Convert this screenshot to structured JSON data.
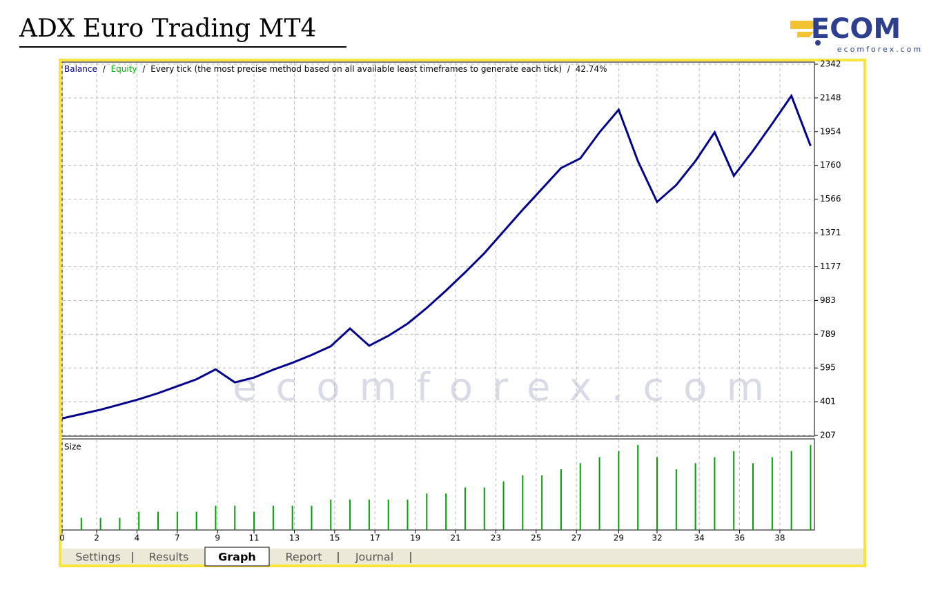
{
  "page_title": "ADX Euro Trading MT4",
  "logo": {
    "mark": "ECOM",
    "site": "ecomforex.com"
  },
  "watermark": "ecomforex.com",
  "tabs": [
    "Settings",
    "Results",
    "Graph",
    "Report",
    "Journal"
  ],
  "active_tab": 2,
  "chart_data": [
    {
      "type": "line",
      "separator": "/",
      "description": "Every tick (the most precise method based on all available least timeframes to generate each tick)",
      "quality": "42.74%",
      "series": [
        {
          "name": "Balance",
          "color": "#00008b",
          "x": [
            0,
            1,
            2,
            3,
            4,
            5,
            6,
            7,
            8,
            9,
            10,
            11,
            12,
            13,
            14,
            15,
            16,
            17,
            18,
            19,
            20,
            21,
            22,
            23,
            24,
            25,
            26,
            27,
            28,
            29,
            30,
            31,
            32,
            33,
            34,
            35,
            36,
            37,
            38,
            39
          ],
          "values": [
            305,
            330,
            355,
            385,
            415,
            450,
            490,
            530,
            587,
            512,
            540,
            585,
            625,
            670,
            720,
            822,
            723,
            780,
            850,
            940,
            1040,
            1145,
            1255,
            1380,
            1505,
            1625,
            1745,
            1800,
            1950,
            2080,
            1785,
            1550,
            1647,
            1785,
            1950,
            1700,
            1844,
            2000,
            2160,
            1872
          ]
        },
        {
          "name": "Equity",
          "color": "#00b000"
        }
      ],
      "xlim": [
        0,
        39.2
      ],
      "xticks": [
        {
          "value": 0,
          "label": "0"
        },
        {
          "value": 1.8,
          "label": "2"
        },
        {
          "value": 3.9,
          "label": "4"
        },
        {
          "value": 6.0,
          "label": "7"
        },
        {
          "value": 8.1,
          "label": "9"
        },
        {
          "value": 10.0,
          "label": "11"
        },
        {
          "value": 12.1,
          "label": "13"
        },
        {
          "value": 14.2,
          "label": "15"
        },
        {
          "value": 16.3,
          "label": "17"
        },
        {
          "value": 18.4,
          "label": "19"
        },
        {
          "value": 20.5,
          "label": "21"
        },
        {
          "value": 22.6,
          "label": "23"
        },
        {
          "value": 24.7,
          "label": "25"
        },
        {
          "value": 26.8,
          "label": "27"
        },
        {
          "value": 29.0,
          "label": "29"
        },
        {
          "value": 31.0,
          "label": "32"
        },
        {
          "value": 33.2,
          "label": "34"
        },
        {
          "value": 35.3,
          "label": "36"
        },
        {
          "value": 37.4,
          "label": "38"
        }
      ],
      "ylim": [
        207,
        2342
      ],
      "yticks": [
        207,
        401,
        595,
        789,
        983,
        1177,
        1371,
        1566,
        1760,
        1954,
        2148,
        2342
      ],
      "grid": true
    },
    {
      "type": "bar",
      "title": "Size",
      "color": "#00a000",
      "x": [
        1,
        2,
        3,
        4,
        5,
        6,
        7,
        8,
        9,
        10,
        11,
        12,
        13,
        14,
        15,
        16,
        17,
        18,
        19,
        20,
        21,
        22,
        23,
        24,
        25,
        26,
        27,
        28,
        29,
        30,
        31,
        32,
        33,
        34,
        35,
        36,
        37,
        38,
        39
      ],
      "values": [
        2,
        2,
        2,
        3,
        3,
        3,
        3,
        4,
        4,
        3,
        4,
        4,
        4,
        5,
        5,
        5,
        5,
        5,
        6,
        6,
        7,
        7,
        8,
        9,
        9,
        10,
        11,
        12,
        13,
        14,
        12,
        10,
        11,
        12,
        13,
        11,
        12,
        13,
        14
      ],
      "ylim": [
        0,
        15
      ]
    }
  ]
}
